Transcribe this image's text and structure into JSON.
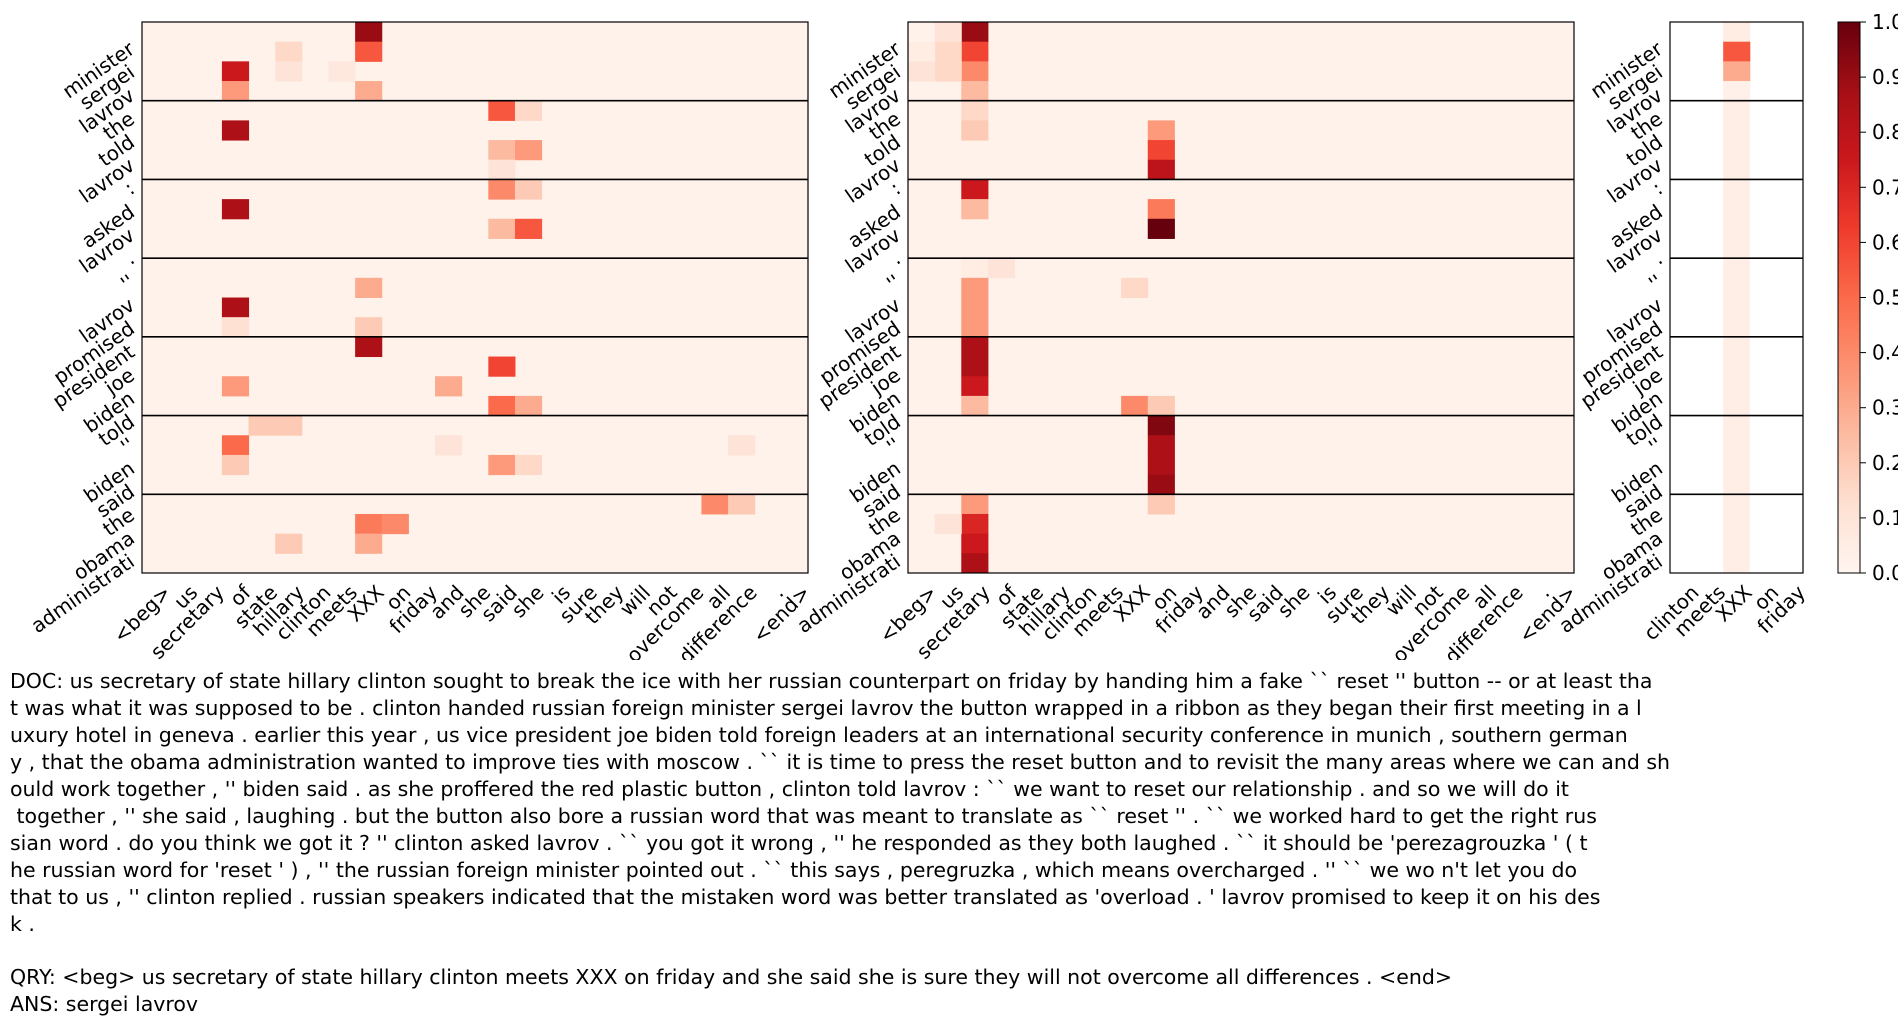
{
  "colors": {
    "cmap": [
      "#fff5f0",
      "#fee0d2",
      "#fcbba1",
      "#fc9272",
      "#fb6a4a",
      "#ef3b2c",
      "#cb181d",
      "#a50f15",
      "#67000d"
    ],
    "separator": "#000000",
    "axis": "#000000"
  },
  "chart_data": [
    {
      "type": "heatmap",
      "panel": "left",
      "x_labels": [
        "<beg>",
        "us",
        "secretary",
        "of",
        "state",
        "hillary",
        "clinton",
        "meets",
        "XXX",
        "on",
        "friday",
        "and",
        "she",
        "said",
        "she",
        "is",
        "sure",
        "they",
        "will",
        "not",
        "overcome",
        "all",
        "difference",
        ".",
        "<end>"
      ],
      "y_labels": [
        "minister",
        "sergei",
        "lavrov",
        "the",
        "told",
        "lavrov",
        ":",
        "asked",
        "lavrov",
        ".",
        "''",
        "lavrov",
        "promised",
        "president",
        "joe",
        "biden",
        "told",
        "''",
        "biden",
        "said",
        "the",
        "obama",
        "administrati"
      ],
      "groups": 7,
      "rows_per_group": 4,
      "cells": [
        {
          "r": 0,
          "c": 8,
          "v": 0.9
        },
        {
          "r": 1,
          "c": 8,
          "v": 0.55
        },
        {
          "r": 2,
          "c": 3,
          "v": 0.75
        },
        {
          "r": 3,
          "c": 3,
          "v": 0.35
        },
        {
          "r": 3,
          "c": 8,
          "v": 0.3
        },
        {
          "r": 1,
          "c": 5,
          "v": 0.15
        },
        {
          "r": 2,
          "c": 5,
          "v": 0.1
        },
        {
          "r": 4,
          "c": 13,
          "v": 0.55
        },
        {
          "r": 4,
          "c": 14,
          "v": 0.15
        },
        {
          "r": 5,
          "c": 3,
          "v": 0.85
        },
        {
          "r": 6,
          "c": 13,
          "v": 0.25
        },
        {
          "r": 6,
          "c": 14,
          "v": 0.35
        },
        {
          "r": 7,
          "c": 13,
          "v": 0.1
        },
        {
          "r": 8,
          "c": 13,
          "v": 0.4
        },
        {
          "r": 8,
          "c": 14,
          "v": 0.2
        },
        {
          "r": 9,
          "c": 3,
          "v": 0.85
        },
        {
          "r": 10,
          "c": 13,
          "v": 0.25
        },
        {
          "r": 10,
          "c": 14,
          "v": 0.55
        },
        {
          "r": 13,
          "c": 8,
          "v": 0.3
        },
        {
          "r": 14,
          "c": 3,
          "v": 0.85
        },
        {
          "r": 15,
          "c": 3,
          "v": 0.12
        },
        {
          "r": 15,
          "c": 8,
          "v": 0.2
        },
        {
          "r": 16,
          "c": 8,
          "v": 0.85
        },
        {
          "r": 17,
          "c": 13,
          "v": 0.6
        },
        {
          "r": 18,
          "c": 3,
          "v": 0.35
        },
        {
          "r": 18,
          "c": 11,
          "v": 0.3
        },
        {
          "r": 19,
          "c": 13,
          "v": 0.5
        },
        {
          "r": 19,
          "c": 14,
          "v": 0.3
        },
        {
          "r": 20,
          "c": 4,
          "v": 0.2
        },
        {
          "r": 20,
          "c": 5,
          "v": 0.2
        },
        {
          "r": 21,
          "c": 3,
          "v": 0.5
        },
        {
          "r": 21,
          "c": 11,
          "v": 0.1
        },
        {
          "r": 22,
          "c": 3,
          "v": 0.2
        },
        {
          "r": 22,
          "c": 13,
          "v": 0.35
        },
        {
          "r": 22,
          "c": 14,
          "v": 0.15
        },
        {
          "r": 24,
          "c": 21,
          "v": 0.4
        },
        {
          "r": 24,
          "c": 22,
          "v": 0.2
        },
        {
          "r": 25,
          "c": 8,
          "v": 0.45
        },
        {
          "r": 25,
          "c": 9,
          "v": 0.4
        },
        {
          "r": 26,
          "c": 8,
          "v": 0.3
        },
        {
          "r": 26,
          "c": 5,
          "v": 0.2
        },
        {
          "r": 21,
          "c": 22,
          "v": 0.1
        },
        {
          "r": 2,
          "c": 7,
          "v": 0.08
        }
      ]
    },
    {
      "type": "heatmap",
      "panel": "middle",
      "x_labels": [
        "<beg>",
        "us",
        "secretary",
        "of",
        "state",
        "hillary",
        "clinton",
        "meets",
        "XXX",
        "on",
        "friday",
        "and",
        "she",
        "said",
        "she",
        "is",
        "sure",
        "they",
        "will",
        "not",
        "overcome",
        "all",
        "difference",
        ".",
        "<end>"
      ],
      "y_labels": [
        "minister",
        "sergei",
        "lavrov",
        "the",
        "told",
        "lavrov",
        ":",
        "asked",
        "lavrov",
        ".",
        "''",
        "lavrov",
        "promised",
        "president",
        "joe",
        "biden",
        "told",
        "''",
        "biden",
        "said",
        "the",
        "obama",
        "administrati"
      ],
      "groups": 7,
      "rows_per_group": 4,
      "cells": [
        {
          "r": 0,
          "c": 2,
          "v": 0.9
        },
        {
          "r": 0,
          "c": 1,
          "v": 0.1
        },
        {
          "r": 1,
          "c": 2,
          "v": 0.6
        },
        {
          "r": 1,
          "c": 1,
          "v": 0.15
        },
        {
          "r": 1,
          "c": 0,
          "v": 0.05
        },
        {
          "r": 2,
          "c": 2,
          "v": 0.4
        },
        {
          "r": 2,
          "c": 1,
          "v": 0.15
        },
        {
          "r": 2,
          "c": 0,
          "v": 0.1
        },
        {
          "r": 3,
          "c": 2,
          "v": 0.25
        },
        {
          "r": 4,
          "c": 2,
          "v": 0.15
        },
        {
          "r": 5,
          "c": 2,
          "v": 0.2
        },
        {
          "r": 5,
          "c": 9,
          "v": 0.35
        },
        {
          "r": 6,
          "c": 9,
          "v": 0.6
        },
        {
          "r": 7,
          "c": 9,
          "v": 0.8
        },
        {
          "r": 8,
          "c": 2,
          "v": 0.75
        },
        {
          "r": 9,
          "c": 2,
          "v": 0.25
        },
        {
          "r": 9,
          "c": 9,
          "v": 0.45
        },
        {
          "r": 10,
          "c": 9,
          "v": 1.0
        },
        {
          "r": 12,
          "c": 2,
          "v": 0.05
        },
        {
          "r": 13,
          "c": 2,
          "v": 0.35
        },
        {
          "r": 14,
          "c": 2,
          "v": 0.35
        },
        {
          "r": 15,
          "c": 2,
          "v": 0.35
        },
        {
          "r": 13,
          "c": 8,
          "v": 0.15
        },
        {
          "r": 16,
          "c": 2,
          "v": 0.85
        },
        {
          "r": 17,
          "c": 2,
          "v": 0.85
        },
        {
          "r": 18,
          "c": 2,
          "v": 0.75
        },
        {
          "r": 19,
          "c": 2,
          "v": 0.25
        },
        {
          "r": 19,
          "c": 8,
          "v": 0.4
        },
        {
          "r": 19,
          "c": 9,
          "v": 0.2
        },
        {
          "r": 20,
          "c": 9,
          "v": 0.95
        },
        {
          "r": 21,
          "c": 9,
          "v": 0.85
        },
        {
          "r": 22,
          "c": 9,
          "v": 0.85
        },
        {
          "r": 23,
          "c": 9,
          "v": 0.9
        },
        {
          "r": 24,
          "c": 2,
          "v": 0.35
        },
        {
          "r": 24,
          "c": 9,
          "v": 0.2
        },
        {
          "r": 25,
          "c": 2,
          "v": 0.7
        },
        {
          "r": 26,
          "c": 2,
          "v": 0.75
        },
        {
          "r": 27,
          "c": 2,
          "v": 0.85
        },
        {
          "r": 25,
          "c": 1,
          "v": 0.1
        },
        {
          "r": 12,
          "c": 3,
          "v": 0.1
        }
      ]
    },
    {
      "type": "heatmap",
      "panel": "right",
      "x_labels": [
        "clinton",
        "meets",
        "XXX",
        "on",
        "friday"
      ],
      "y_labels": [
        "minister",
        "sergei",
        "lavrov",
        "the",
        "told",
        "lavrov",
        ":",
        "asked",
        "lavrov",
        ".",
        "''",
        "lavrov",
        "promised",
        "president",
        "joe",
        "biden",
        "told",
        "''",
        "biden",
        "said",
        "the",
        "obama",
        "administrati"
      ],
      "groups": 7,
      "rows_per_group": 4,
      "cells": [
        {
          "r": 0,
          "c": 2,
          "v": 0.05
        },
        {
          "r": 1,
          "c": 2,
          "v": 0.55
        },
        {
          "r": 2,
          "c": 2,
          "v": 0.3
        },
        {
          "r": 3,
          "c": 2,
          "v": 0.03
        }
      ],
      "col_default": {
        "c": 2,
        "v": 0.04
      }
    }
  ],
  "colorbar": {
    "ticks": [
      "1.0",
      "0.9",
      "0.8",
      "0.7",
      "0.6",
      "0.5",
      "0.4",
      "0.3",
      "0.2",
      "0.1",
      "0.0"
    ],
    "vmin": 0,
    "vmax": 1
  },
  "doc_lines": [
    "DOC: us secretary of state hillary clinton sought to break the ice with her russian counterpart on friday by handing him a fake `` reset '' button -- or at least tha",
    "t was what it was supposed to be . clinton handed russian foreign minister sergei lavrov the button wrapped in a ribbon as they began their first meeting in a l",
    "uxury hotel in geneva . earlier this year , us vice president joe biden told foreign leaders at an international security conference in munich , southern german",
    "y , that the obama administration wanted to improve ties with moscow . `` it is time to press the reset button and to revisit the many areas where we can and sh",
    "ould work together , '' biden said . as she proffered the red plastic button , clinton told lavrov : `` we want to reset our relationship . and so we will do it",
    " together , '' she said , laughing . but the button also bore a russian word that was meant to translate as `` reset '' . `` we worked hard to get the right rus",
    "sian word . do you think we got it ? '' clinton asked lavrov . `` you got it wrong , '' he responded as they both laughed . `` it should be 'perezagrouzka ' ( t",
    "he russian word for 'reset ' ) , '' the russian foreign minister pointed out . `` this says , peregruzka , which means overcharged . '' `` we wo n't let you do",
    "that to us , '' clinton replied . russian speakers indicated that the mistaken word was better translated as 'overload . ' lavrov promised to keep it on his des",
    "k ."
  ],
  "qry": "QRY: <beg> us secretary of state hillary clinton meets XXX on friday and she said she is sure they will not overcome all differences . <end>",
  "ans": "ANS: sergei lavrov"
}
